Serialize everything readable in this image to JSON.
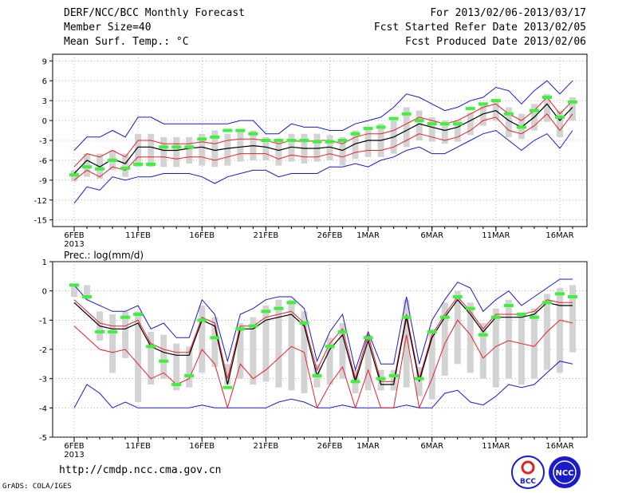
{
  "header": {
    "title": "DERF/NCC/BCC Monthly Forecast",
    "member_size": "Member Size=40",
    "variable": "Mean Surf. Temp.: °C",
    "period": "For 2013/02/06-2013/03/17",
    "refer_date": "Fcst Started Refer Date 2013/02/05",
    "produced_date": "Fcst Produced Date 2013/02/06"
  },
  "footer": {
    "url": "http://cmdp.ncc.cma.gov.cn",
    "credit": "GrADS: COLA/IGES",
    "logo_left_text": "BCC",
    "logo_right_text": "NCC"
  },
  "colors": {
    "bar": "#d3d3d3",
    "obs": "#3ff03f",
    "mean": "#000000",
    "spread": "#e8202a",
    "envelope": "#1a1acc"
  },
  "chart_data": [
    {
      "type": "line",
      "title": "Mean Surf. Temp.: °C",
      "x": [
        "6FEB",
        "7FEB",
        "8FEB",
        "9FEB",
        "10FEB",
        "11FEB",
        "12FEB",
        "13FEB",
        "14FEB",
        "15FEB",
        "16FEB",
        "17FEB",
        "18FEB",
        "19FEB",
        "20FEB",
        "21FEB",
        "22FEB",
        "23FEB",
        "24FEB",
        "25FEB",
        "26FEB",
        "27FEB",
        "28FEB",
        "1MAR",
        "2MAR",
        "3MAR",
        "4MAR",
        "5MAR",
        "6MAR",
        "7MAR",
        "8MAR",
        "9MAR",
        "10MAR",
        "11MAR",
        "12MAR",
        "13MAR",
        "14MAR",
        "15MAR",
        "16MAR",
        "17MAR"
      ],
      "xticks": [
        "6FEB",
        "11FEB",
        "16FEB",
        "21FEB",
        "26FEB",
        "1MAR",
        "6MAR",
        "11MAR",
        "16MAR"
      ],
      "xtick_index": [
        0,
        5,
        10,
        15,
        20,
        23,
        28,
        33,
        38
      ],
      "xyear": "2013",
      "ylim": [
        -16,
        10
      ],
      "yticks": [
        9,
        6,
        3,
        0,
        -3,
        -6,
        -9,
        -12,
        -15
      ],
      "series": [
        {
          "name": "ensemble mean",
          "values": [
            -8,
            -6,
            -7,
            -5.8,
            -6.5,
            -4,
            -4,
            -4.5,
            -4.5,
            -4.2,
            -4,
            -4.5,
            -4.2,
            -4,
            -3.8,
            -4,
            -4.5,
            -4,
            -4.2,
            -4.2,
            -4,
            -4.5,
            -3.5,
            -3,
            -3,
            -2.5,
            -1.5,
            -0.5,
            -1,
            -1.5,
            -1,
            0,
            1,
            1.5,
            0,
            -1,
            0.5,
            2.5,
            0,
            2
          ]
        },
        {
          "name": "spread upper",
          "values": [
            -7,
            -5,
            -5.5,
            -4.5,
            -5.5,
            -3,
            -3,
            -3.5,
            -3.5,
            -3.5,
            -3.2,
            -3.5,
            -3,
            -2.8,
            -2.8,
            -3,
            -3.5,
            -3,
            -3.2,
            -3,
            -3,
            -3.5,
            -2.5,
            -2,
            -2,
            -1.5,
            -0.5,
            0.5,
            0,
            -0.5,
            0,
            1,
            2,
            2.5,
            1,
            0,
            1.5,
            3.5,
            1,
            3
          ]
        },
        {
          "name": "spread lower",
          "values": [
            -9,
            -7.5,
            -8.5,
            -7,
            -7.5,
            -5.5,
            -5.5,
            -5.5,
            -5.8,
            -5.5,
            -5.5,
            -6,
            -5.5,
            -5,
            -5,
            -5,
            -5.8,
            -5.2,
            -5.5,
            -5.5,
            -5,
            -5.5,
            -4.8,
            -4.5,
            -4.5,
            -4,
            -3,
            -2,
            -2.5,
            -3,
            -2.5,
            -1.5,
            0,
            0.5,
            -1.5,
            -2,
            -0.8,
            1,
            -1.5,
            1
          ]
        },
        {
          "name": "ensemble max",
          "values": [
            -4.5,
            -2.5,
            -2.5,
            -1.5,
            -2.5,
            0.5,
            0.5,
            -0.5,
            -0.5,
            -0.5,
            -0.5,
            -0.5,
            -0.5,
            0,
            0,
            -2,
            -2,
            -0.5,
            -1,
            -1,
            -1.5,
            -1.5,
            -0.5,
            0,
            0.5,
            2,
            4,
            3.5,
            2.5,
            1.5,
            2,
            3,
            3.5,
            5,
            4.5,
            2.5,
            4.5,
            6,
            4,
            6
          ]
        },
        {
          "name": "ensemble min",
          "values": [
            -12.5,
            -10,
            -10.5,
            -8.5,
            -9,
            -8.5,
            -8.5,
            -8,
            -8,
            -8,
            -8.5,
            -9.5,
            -8.5,
            -8,
            -7.5,
            -7.5,
            -8.5,
            -8,
            -8,
            -8,
            -7,
            -7,
            -6.5,
            -7,
            -6,
            -5.5,
            -4.5,
            -4,
            -5,
            -5,
            -4,
            -3,
            -2,
            -1.5,
            -3,
            -4.5,
            -3,
            -2,
            -4.2,
            -1.5
          ]
        }
      ],
      "boxes": {
        "low": [
          -9.2,
          -8.5,
          -8.8,
          -7.5,
          -8.5,
          -7,
          -7,
          -7,
          -7,
          -6.5,
          -6.8,
          -7,
          -6.8,
          -6.2,
          -6,
          -6,
          -6.8,
          -6.2,
          -6.5,
          -6.2,
          -6,
          -6.8,
          -5.8,
          -5.5,
          -5.5,
          -5,
          -4,
          -3,
          -3.2,
          -3.5,
          -3.2,
          -2.2,
          -0.8,
          0,
          -2.5,
          -2.8,
          -1.5,
          -0.2,
          -2.5,
          0
        ],
        "high": [
          -7.5,
          -5,
          -5,
          -4.5,
          -5,
          -2,
          -2,
          -2.5,
          -2.5,
          -2.5,
          -2,
          -1.5,
          -2,
          -1.5,
          -1.5,
          -2.5,
          -3,
          -2,
          -2,
          -2,
          -2.2,
          -2.5,
          -1.5,
          -1,
          -0.5,
          0,
          2,
          1.5,
          0.5,
          0,
          0,
          1.2,
          2.5,
          3,
          2,
          1,
          2.5,
          4,
          1.5,
          3.5
        ]
      },
      "observed": [
        -8.2,
        -7,
        -7.3,
        -6,
        -7.2,
        -6.6,
        -6.6,
        -4,
        -4,
        -4,
        -2.8,
        -2.5,
        -1.5,
        -1.5,
        -2,
        -3,
        -3,
        -3,
        -3,
        -3.2,
        -3.2,
        -3,
        -2,
        -1.2,
        -1,
        0.3,
        1,
        0,
        -0.5,
        -0.5,
        -0.5,
        1.8,
        2.5,
        3,
        1,
        -1,
        1.5,
        3.5,
        0.5,
        2.8
      ]
    },
    {
      "type": "line",
      "title": "Prec.: log(mm/d)",
      "x": [
        "6FEB",
        "7FEB",
        "8FEB",
        "9FEB",
        "10FEB",
        "11FEB",
        "12FEB",
        "13FEB",
        "14FEB",
        "15FEB",
        "16FEB",
        "17FEB",
        "18FEB",
        "19FEB",
        "20FEB",
        "21FEB",
        "22FEB",
        "23FEB",
        "24FEB",
        "25FEB",
        "26FEB",
        "27FEB",
        "28FEB",
        "1MAR",
        "2MAR",
        "3MAR",
        "4MAR",
        "5MAR",
        "6MAR",
        "7MAR",
        "8MAR",
        "9MAR",
        "10MAR",
        "11MAR",
        "12MAR",
        "13MAR",
        "14MAR",
        "15MAR",
        "16MAR",
        "17MAR"
      ],
      "xticks": [
        "6FEB",
        "11FEB",
        "16FEB",
        "21FEB",
        "26FEB",
        "1MAR",
        "6MAR",
        "11MAR",
        "16MAR"
      ],
      "xtick_index": [
        0,
        5,
        10,
        15,
        20,
        23,
        28,
        33,
        38
      ],
      "xyear": "2013",
      "ylim": [
        -5,
        1
      ],
      "yticks": [
        1,
        0,
        -1,
        -2,
        -3,
        -4,
        -5
      ],
      "series": [
        {
          "name": "ensemble mean",
          "values": [
            -0.4,
            -0.8,
            -1.2,
            -1.3,
            -1.3,
            -1.1,
            -1.9,
            -2.1,
            -2.2,
            -2.2,
            -1,
            -1.2,
            -3.2,
            -1.3,
            -1.3,
            -1,
            -0.9,
            -0.8,
            -1.2,
            -2.9,
            -2,
            -1.5,
            -3.1,
            -1.7,
            -3.2,
            -3.2,
            -0.9,
            -3.1,
            -1.6,
            -0.9,
            -0.3,
            -0.8,
            -1.4,
            -0.9,
            -0.9,
            -0.9,
            -0.8,
            -0.4,
            -0.5,
            -0.5
          ]
        },
        {
          "name": "spread upper",
          "values": [
            -0.3,
            -0.7,
            -1.1,
            -1.2,
            -1.2,
            -1,
            -1.8,
            -2,
            -2.1,
            -2.1,
            -0.9,
            -1.1,
            -3,
            -1.2,
            -1.2,
            -0.9,
            -0.8,
            -0.7,
            -1.1,
            -2.7,
            -1.8,
            -1.3,
            -3,
            -1.5,
            -3.1,
            -3.1,
            -0.8,
            -3,
            -1.5,
            -0.8,
            -0.2,
            -0.7,
            -1.3,
            -0.8,
            -0.8,
            -0.8,
            -0.7,
            -0.3,
            -0.4,
            -0.4
          ]
        },
        {
          "name": "spread lower",
          "values": [
            -1.2,
            -1.6,
            -2,
            -2.1,
            -2,
            -2.5,
            -3,
            -2.8,
            -3.2,
            -3,
            -2,
            -2.5,
            -4,
            -2.5,
            -3,
            -2.7,
            -2.3,
            -1.9,
            -2.1,
            -4,
            -3.2,
            -2.6,
            -4,
            -2.7,
            -4,
            -4,
            -1.5,
            -4,
            -3,
            -1.8,
            -1,
            -1.5,
            -2.3,
            -1.9,
            -1.7,
            -1.8,
            -1.9,
            -1.4,
            -1,
            -1.1
          ]
        },
        {
          "name": "ensemble max",
          "values": [
            0.2,
            -0.3,
            -0.5,
            -0.7,
            -0.7,
            -0.5,
            -1.3,
            -1.1,
            -1.6,
            -1.6,
            -0.3,
            -0.8,
            -2.4,
            -0.8,
            -0.6,
            -0.3,
            -0.2,
            -0.2,
            -0.6,
            -2.4,
            -1.4,
            -0.8,
            -2.7,
            -1.4,
            -2.5,
            -2.5,
            -0.2,
            -2.5,
            -1,
            -0.3,
            0.3,
            0.1,
            -0.7,
            -0.3,
            0,
            -0.5,
            -0.2,
            0.1,
            0.4,
            0.4
          ]
        },
        {
          "name": "ensemble min",
          "values": [
            -4,
            -3.2,
            -3.5,
            -4,
            -3.8,
            -4,
            -4,
            -4,
            -4,
            -4,
            -3.9,
            -4,
            -4,
            -4,
            -4,
            -4,
            -3.8,
            -3.7,
            -3.8,
            -4,
            -4,
            -3.9,
            -4,
            -4,
            -4,
            -4,
            -3.9,
            -4,
            -4,
            -3.5,
            -3.4,
            -3.8,
            -3.9,
            -3.6,
            -3.2,
            -3.3,
            -3.2,
            -2.8,
            -2.4,
            -2.5
          ]
        }
      ],
      "boxes": {
        "low": [
          -0.2,
          -0.3,
          -1.7,
          -2.8,
          -2.3,
          -3.8,
          -3.2,
          -3,
          -3.4,
          -3.3,
          -2.8,
          -2.6,
          -3.2,
          -3,
          -3.2,
          -3.1,
          -3.3,
          -3.4,
          -3.5,
          -3.3,
          -3.2,
          -3,
          -3.5,
          -3.4,
          -3.4,
          -3.4,
          -3.3,
          -3.6,
          -3.7,
          -2.9,
          -2.5,
          -2.8,
          -3,
          -3.3,
          -3,
          -3.2,
          -3,
          -2.7,
          -2.8,
          -2.1
        ],
        "high": [
          0.2,
          0.2,
          -0.7,
          -0.8,
          -0.7,
          -0.7,
          -1.4,
          -1.5,
          -1.8,
          -1.9,
          -0.5,
          -0.9,
          -2.5,
          -1.1,
          -0.9,
          -0.5,
          -0.3,
          -0.3,
          -0.7,
          -2.5,
          -1.6,
          -1.1,
          -2.7,
          -1.5,
          -2.7,
          -2.7,
          -0.3,
          -2.6,
          -1.3,
          -0.4,
          0,
          -0.4,
          -1.1,
          -0.6,
          -0.3,
          -0.8,
          -0.6,
          -0.1,
          0.1,
          0.2
        ]
      },
      "observed": [
        0.2,
        -0.2,
        -1.4,
        -1.4,
        -0.9,
        -0.8,
        -1.9,
        -2.4,
        -3.2,
        -2.9,
        -1,
        -1.6,
        -3.3,
        -1.3,
        -1.2,
        -0.7,
        -0.6,
        -0.4,
        -1.1,
        -2.9,
        -1.9,
        -1.4,
        -3.1,
        -1.6,
        -3,
        -2.9,
        -0.9,
        -3,
        -1.4,
        -0.9,
        -0.2,
        -0.6,
        -1.5,
        -0.9,
        -0.5,
        -0.8,
        -0.9,
        -0.4,
        -0.1,
        -0.2
      ]
    }
  ]
}
